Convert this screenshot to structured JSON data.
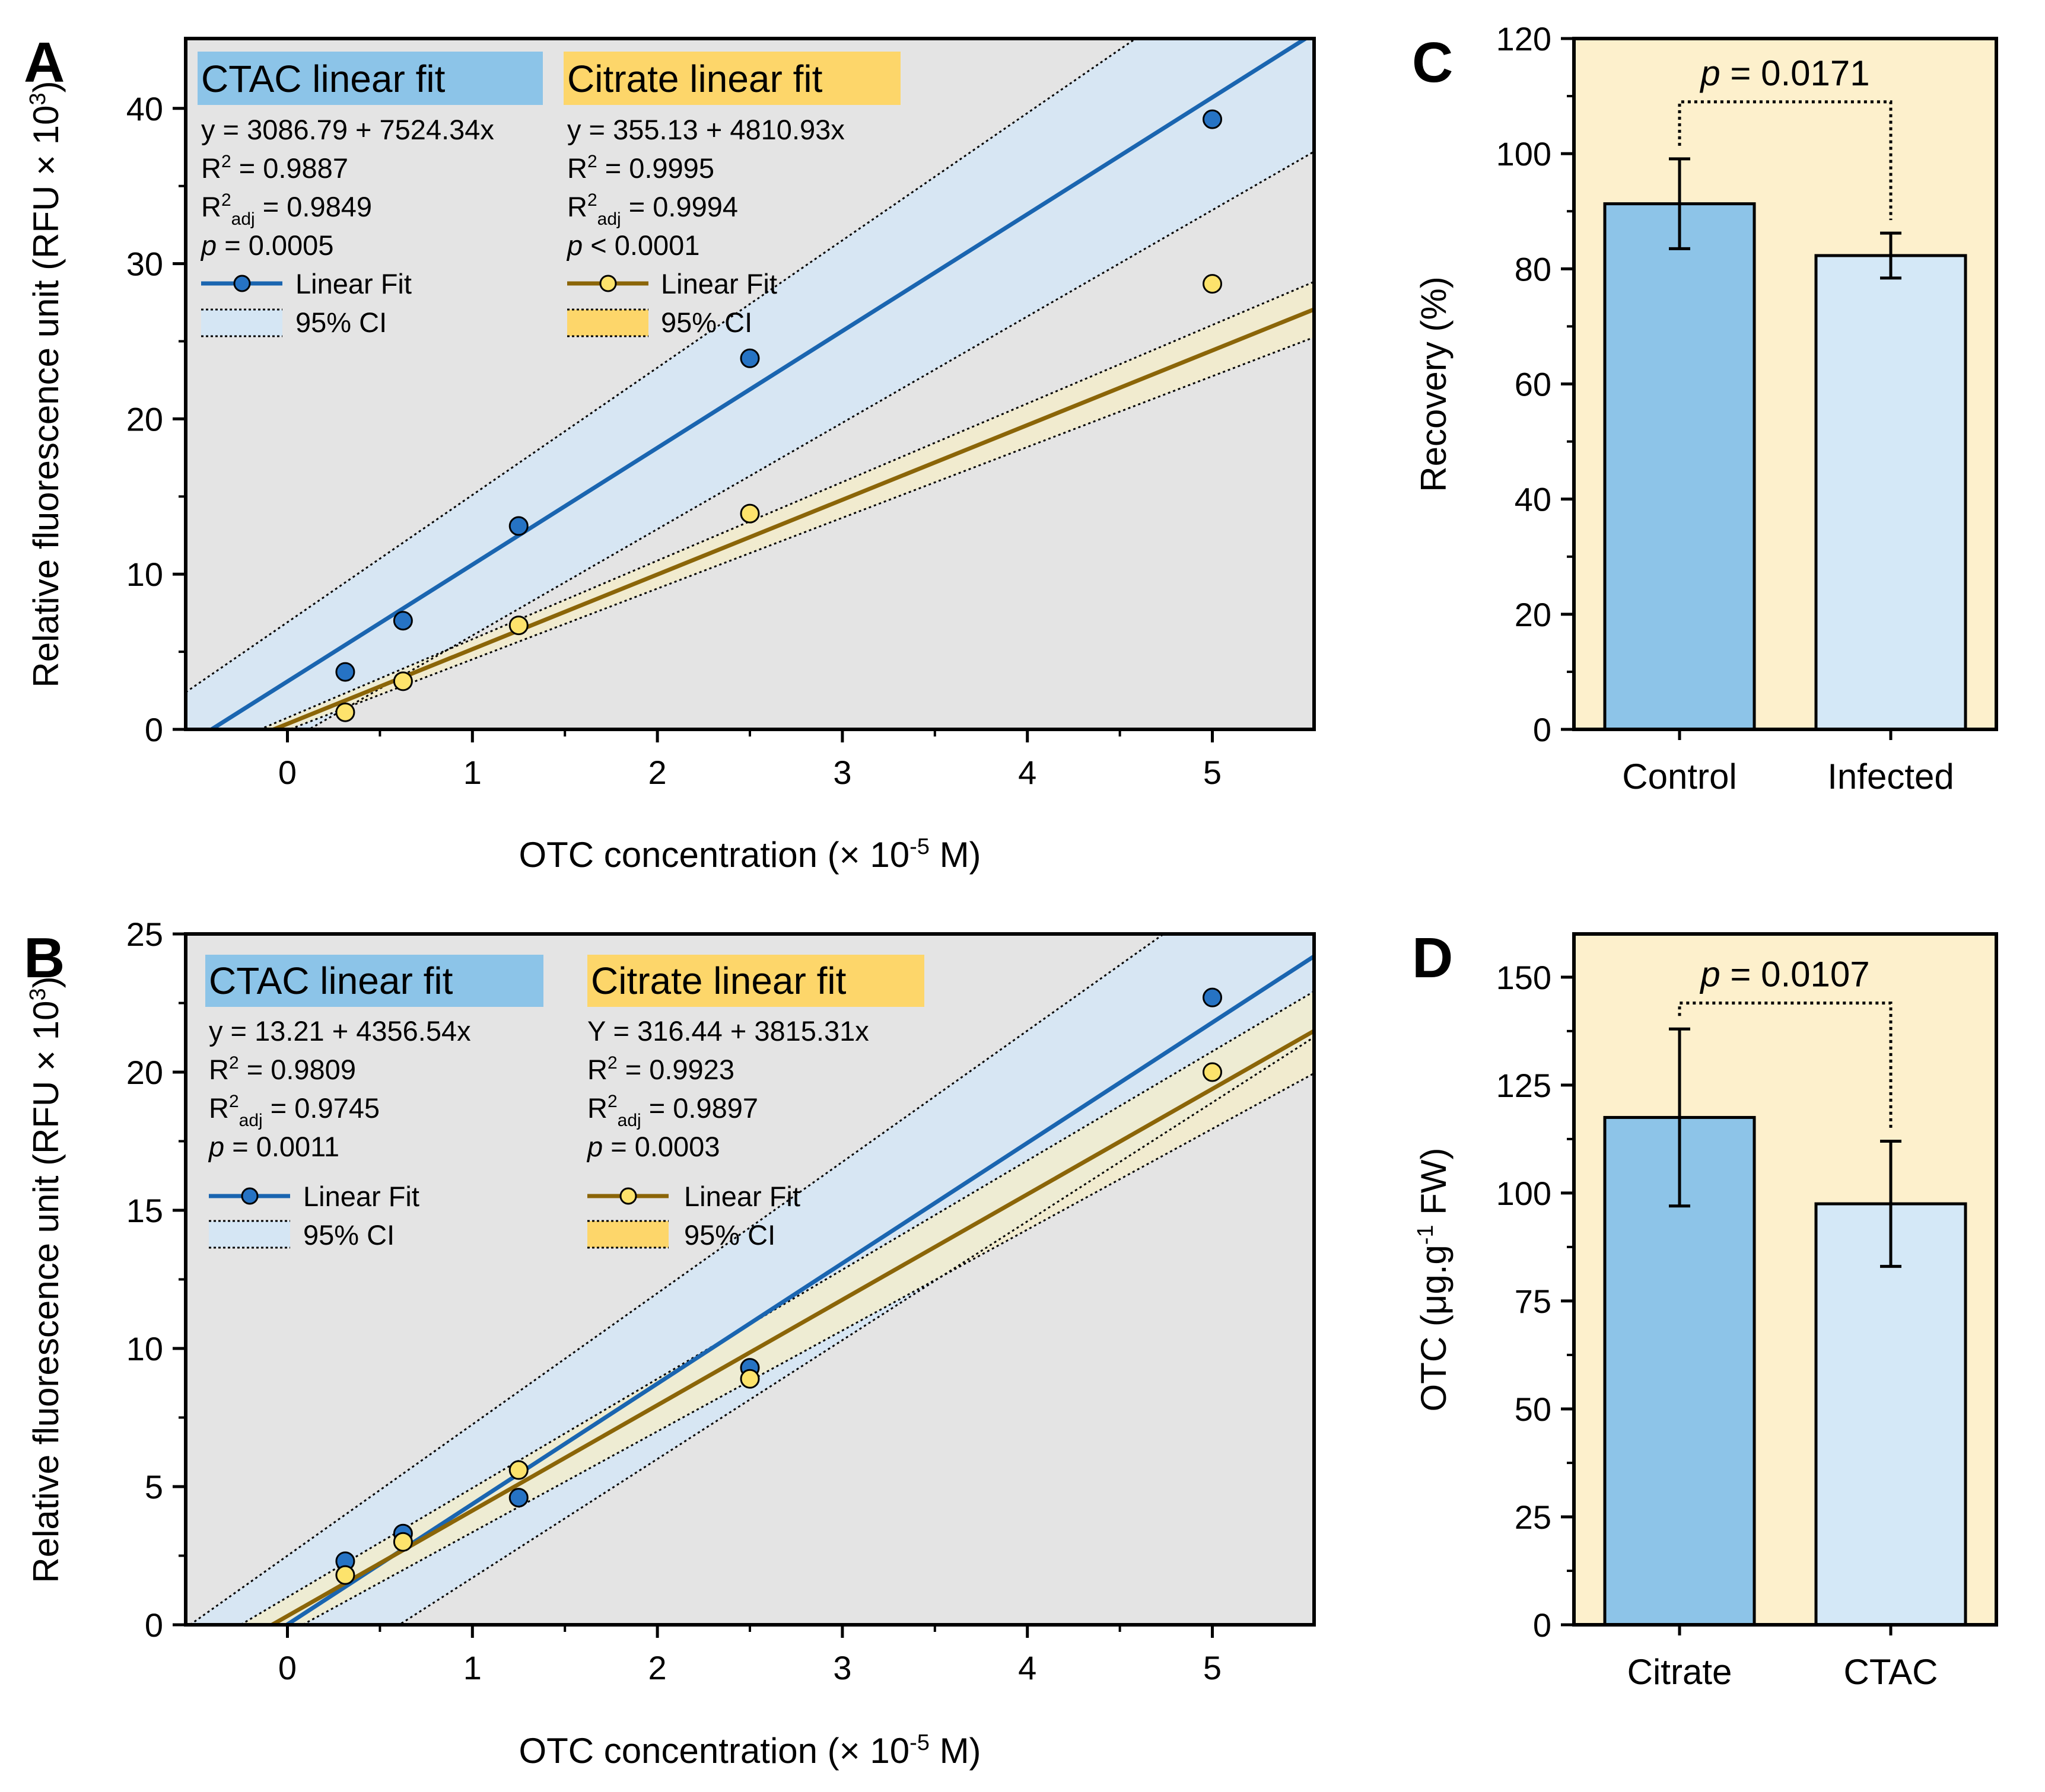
{
  "figure": {
    "letters": [
      "A",
      "B",
      "C",
      "D"
    ]
  },
  "chart_data": [
    {
      "panel": "A",
      "type": "scatter",
      "xlabel": "OTC concentration (× 10-5 M)",
      "ylabel": "Relative fluorescence unit (RFU × 103)",
      "xlim": [
        -0.55,
        5.55
      ],
      "ylim": [
        0,
        44.5
      ],
      "x_ticks": [
        0,
        1,
        2,
        3,
        4,
        5
      ],
      "y_ticks": [
        0,
        10,
        20,
        30,
        40
      ],
      "x_tick_labels": [
        "0",
        "1",
        "2",
        "3",
        "4",
        "5"
      ],
      "y_tick_labels": [
        "0",
        "10",
        "20",
        "30",
        "40"
      ],
      "colors": {
        "ctac": "#1a65b0",
        "citrate": "#8b6508",
        "ctac_ci_fill": "#d5e6f4",
        "citrate_ci_fill": "#f6edc8",
        "background": "#e4e4e4",
        "ctac_dot": "#2673c4",
        "citrate_dot": "#fde36c"
      },
      "series": [
        {
          "name": "CTAC",
          "x": [
            0.3125,
            0.625,
            1.25,
            2.5,
            5.0
          ],
          "y": [
            3.7,
            7.0,
            13.1,
            23.9,
            39.3
          ],
          "fit": {
            "intercept": 3.08679,
            "slope": 7.52434
          },
          "ci_upper": {
            "intercept": 6.9,
            "slope": 8.2
          },
          "ci_lower": {
            "intercept": -0.8,
            "slope": 6.85
          }
        },
        {
          "name": "Citrate",
          "x": [
            0.3125,
            0.625,
            1.25,
            2.5,
            5.0
          ],
          "y": [
            1.1,
            3.1,
            6.7,
            13.9,
            28.7
          ],
          "fit": {
            "intercept": 0.35513,
            "slope": 4.81093
          },
          "ci_upper": {
            "intercept": 0.75,
            "slope": 5.06
          },
          "ci_lower": {
            "intercept": -0.05,
            "slope": 4.56
          }
        }
      ],
      "legends": [
        {
          "title": "CTAC linear fit",
          "eq": "y = 3086.79 + 7524.34x",
          "r2_val": "= 0.9887",
          "r2adj_val": "= 0.9849",
          "p_val": "= 0.0005",
          "fit_label": "Linear Fit",
          "ci_label": "95% CI"
        },
        {
          "title": "Citrate linear fit",
          "eq": "y = 355.13 + 4810.93x",
          "r2_val": "= 0.9995",
          "r2adj_val": "= 0.9994",
          "p_val": "< 0.0001",
          "fit_label": "Linear Fit",
          "ci_label": "95% CI"
        }
      ]
    },
    {
      "panel": "B",
      "type": "scatter",
      "xlabel": "OTC concentration (× 10-5 M)",
      "ylabel": "Relative fluorescence unit (RFU × 103)",
      "xlim": [
        -0.55,
        5.55
      ],
      "ylim": [
        0,
        25
      ],
      "x_ticks": [
        0,
        1,
        2,
        3,
        4,
        5
      ],
      "y_ticks": [
        0,
        5,
        10,
        15,
        20,
        25
      ],
      "x_tick_labels": [
        "0",
        "1",
        "2",
        "3",
        "4",
        "5"
      ],
      "y_tick_labels": [
        "0",
        "5",
        "10",
        "15",
        "20",
        "25"
      ],
      "colors": {
        "ctac": "#1a65b0",
        "citrate": "#8b6508",
        "ctac_ci_fill": "#d5e6f4",
        "citrate_ci_fill": "#f6edc8",
        "background": "#e4e4e4",
        "ctac_dot": "#2673c4",
        "citrate_dot": "#fde36c"
      },
      "series": [
        {
          "name": "CTAC",
          "x": [
            0.3125,
            0.625,
            1.25,
            2.5,
            5.0
          ],
          "y": [
            2.3,
            3.3,
            4.6,
            9.3,
            22.7
          ],
          "fit": {
            "intercept": 0.01321,
            "slope": 4.35654
          },
          "ci_upper": {
            "intercept": 2.5,
            "slope": 4.75
          },
          "ci_lower": {
            "intercept": -2.6,
            "slope": 4.3
          }
        },
        {
          "name": "Citrate",
          "x": [
            0.3125,
            0.625,
            1.25,
            2.5,
            5.0
          ],
          "y": [
            1.8,
            3.0,
            5.6,
            8.9,
            20.0
          ],
          "fit": {
            "intercept": 0.31644,
            "slope": 3.81531
          },
          "ci_upper": {
            "intercept": 1.0,
            "slope": 3.95
          },
          "ci_lower": {
            "intercept": -0.3,
            "slope": 3.65
          }
        }
      ],
      "legends": [
        {
          "title": "CTAC linear fit",
          "eq": "y = 13.21 + 4356.54x",
          "r2_val": "= 0.9809",
          "r2adj_val": "= 0.9745",
          "p_val": "= 0.0011",
          "fit_label": "Linear Fit",
          "ci_label": "95% CI"
        },
        {
          "title": "Citrate linear fit",
          "eq": "Y = 316.44 + 3815.31x",
          "r2_val": "= 0.9923",
          "r2adj_val": "= 0.9897",
          "p_val": "= 0.0003",
          "fit_label": "Linear Fit",
          "ci_label": "95% CI"
        }
      ]
    },
    {
      "panel": "C",
      "type": "bar",
      "categories": [
        "Control",
        "Infected"
      ],
      "values": [
        91.3,
        82.3
      ],
      "errors": [
        7.8,
        3.9
      ],
      "ylabel": "Recovery (%)",
      "ylim": [
        0,
        120
      ],
      "y_ticks": [
        0,
        20,
        40,
        60,
        80,
        100,
        120
      ],
      "y_tick_labels": [
        "0",
        "20",
        "40",
        "60",
        "80",
        "100",
        "120"
      ],
      "significance": "= 0.0171",
      "significance_level": 109,
      "colors": {
        "background": "#fdf0cc",
        "bars": [
          "#8dc4e8",
          "#d4e8f7"
        ]
      }
    },
    {
      "panel": "D",
      "type": "bar",
      "categories": [
        "Citrate",
        "CTAC"
      ],
      "values": [
        117.5,
        97.5
      ],
      "errors": [
        20.5,
        14.5
      ],
      "ylabel": "OTC (μg.g-1 FW)",
      "ylim": [
        0,
        160
      ],
      "y_ticks": [
        0,
        25,
        50,
        75,
        100,
        125,
        150
      ],
      "y_tick_labels": [
        "0",
        "25",
        "50",
        "75",
        "100",
        "125",
        "150"
      ],
      "significance": "= 0.0107",
      "significance_level": 144,
      "colors": {
        "background": "#fdf0cc",
        "bars": [
          "#8dc4e8",
          "#d4e8f7"
        ]
      }
    }
  ]
}
